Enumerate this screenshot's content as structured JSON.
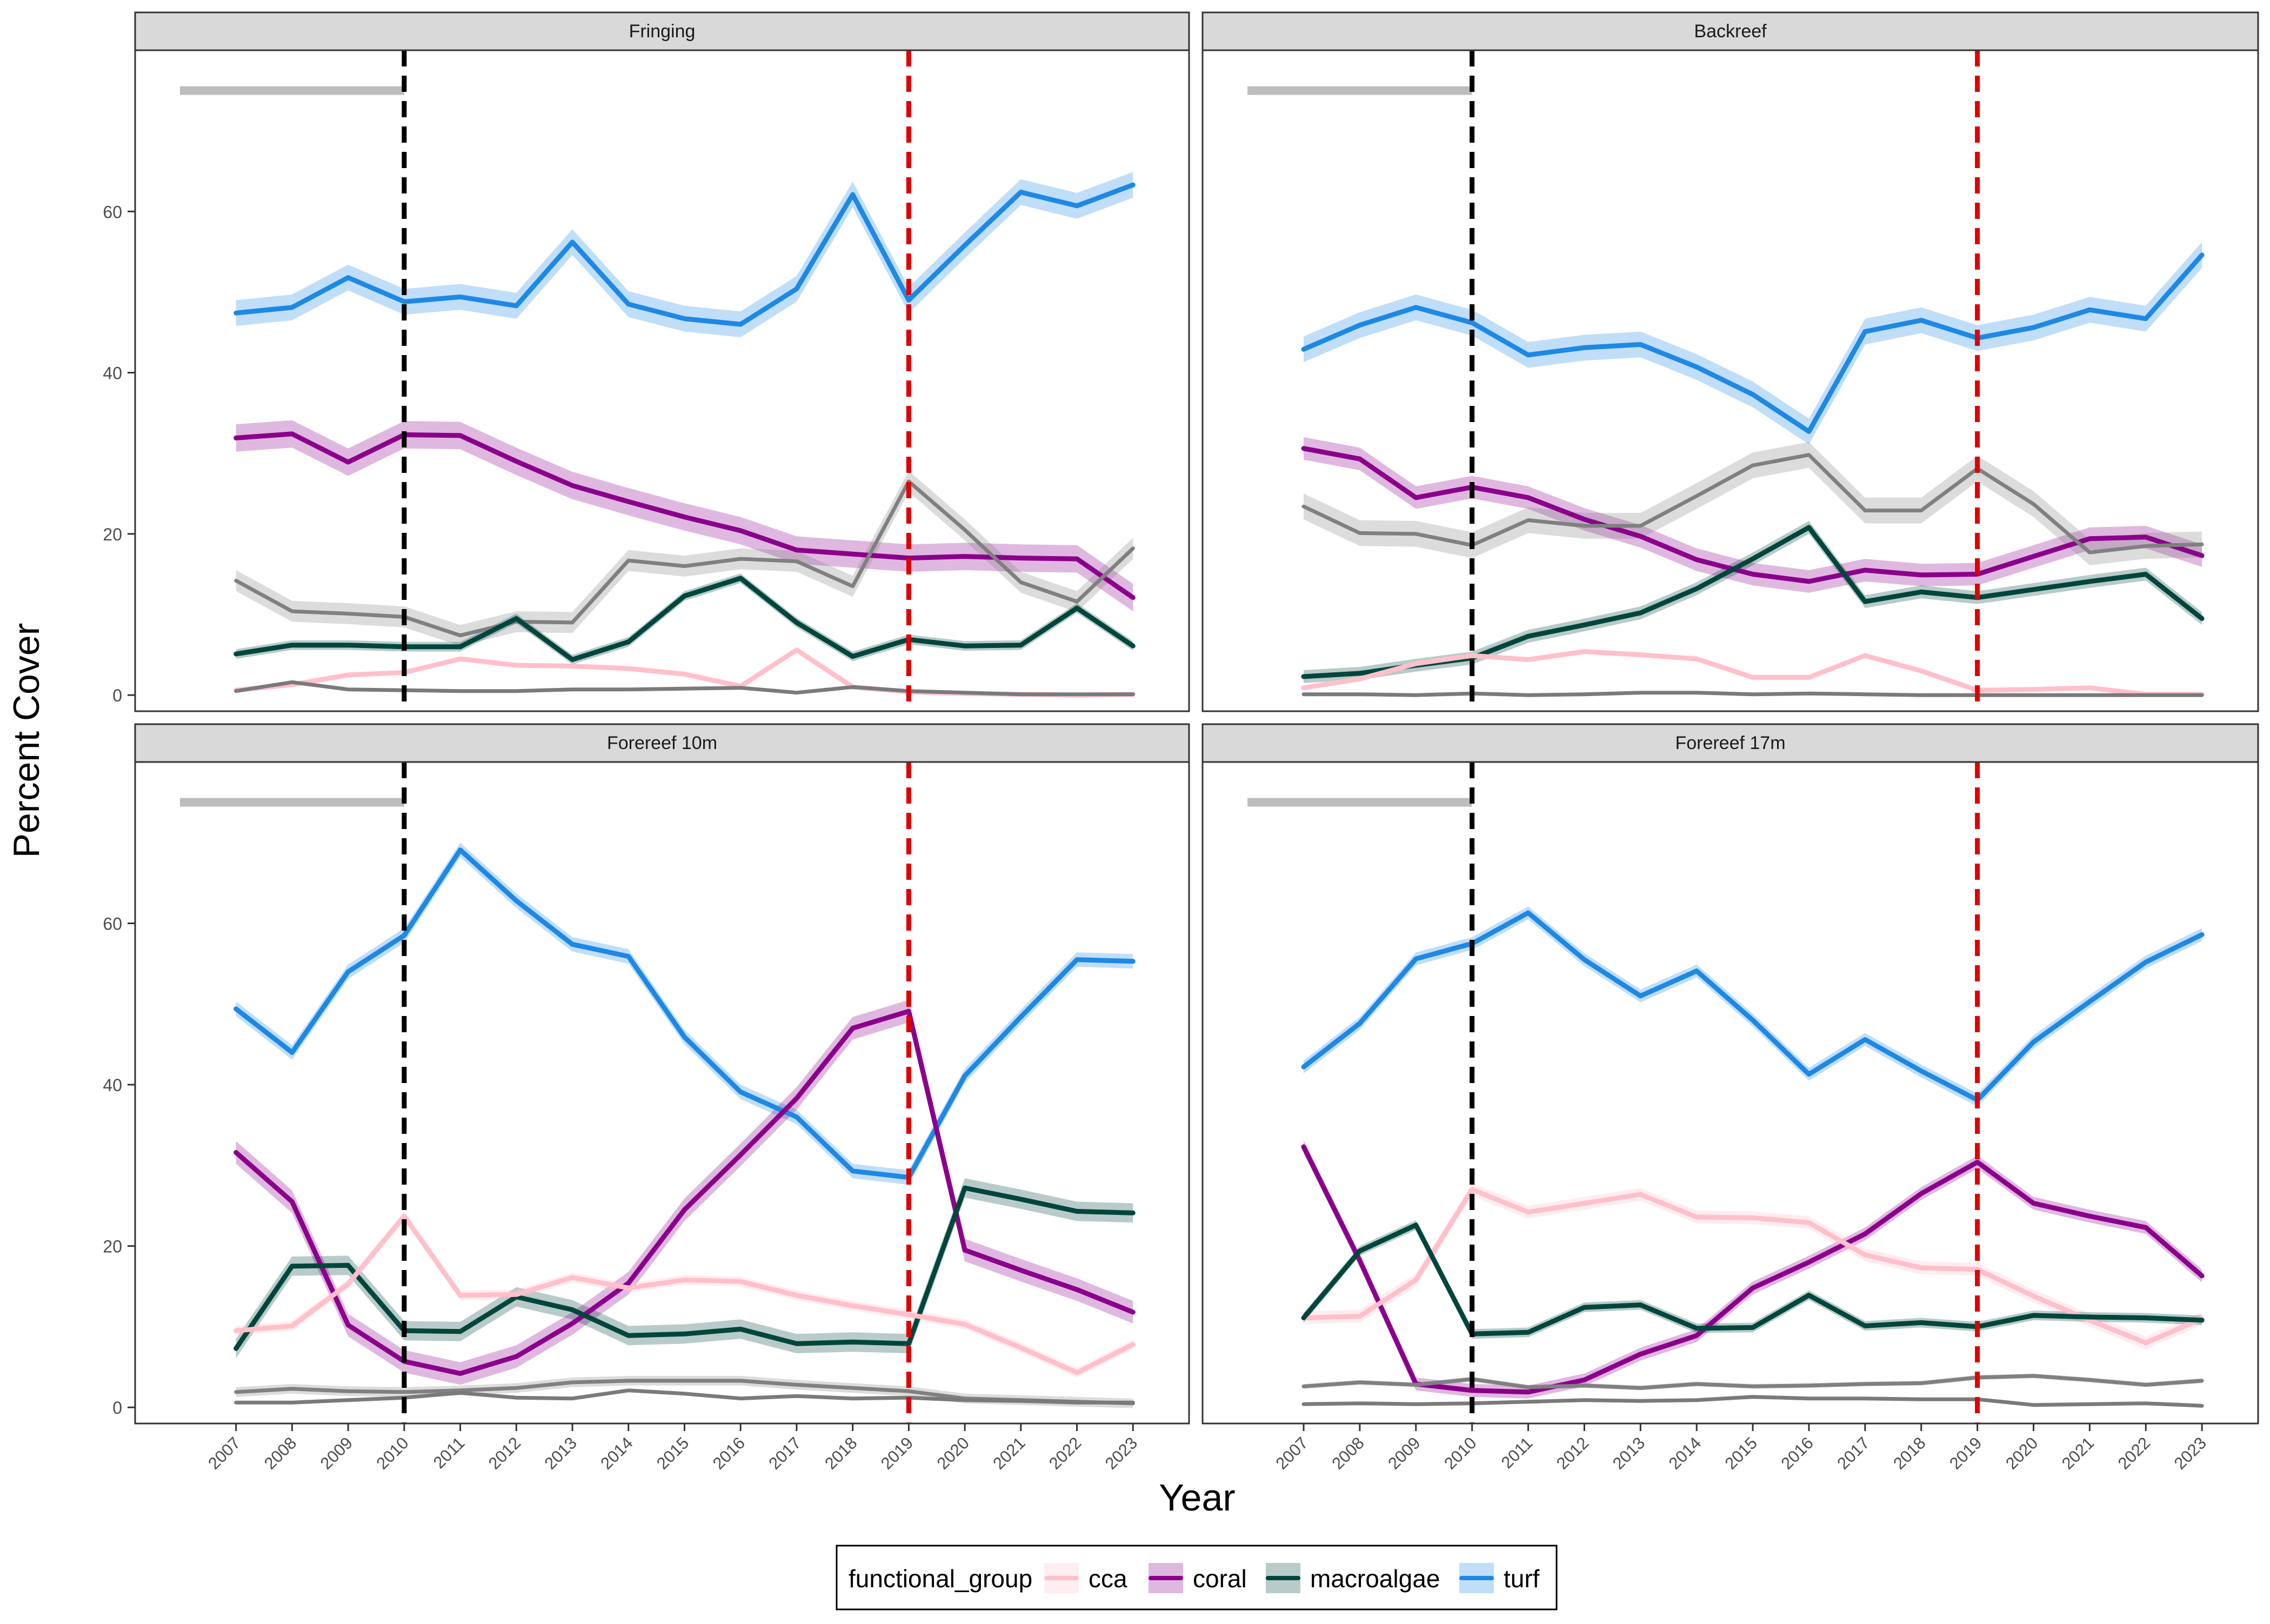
{
  "figure": {
    "ylabel": "Percent Cover",
    "xlabel": "Year"
  },
  "legend": {
    "title": "functional_group",
    "placement": "bottom",
    "entries": [
      {
        "label": "cca",
        "color": "#ffc0cb"
      },
      {
        "label": "coral",
        "color": "#8b008b"
      },
      {
        "label": "macroalgae",
        "color": "#00463c"
      },
      {
        "label": "turf",
        "color": "#1e88e5"
      }
    ]
  },
  "colors": {
    "cca": "#ffc0cb",
    "coral": "#8b008b",
    "macroalgae": "#00463c",
    "turf": "#1e88e5",
    "grey_upper": "#808080",
    "grey_lower": "#7a7a7a",
    "period_bar": "#bdbdbd",
    "vline_2010": "#000000",
    "vline_2019": "#e00000",
    "strip_fill": "#d9d9d9"
  },
  "chart_data": {
    "type": "line",
    "facets": [
      "Fringing",
      "Backreef",
      "Forereef 10m",
      "Forereef 17m"
    ],
    "x": [
      2007,
      2008,
      2009,
      2010,
      2011,
      2012,
      2013,
      2014,
      2015,
      2016,
      2017,
      2018,
      2019,
      2020,
      2021,
      2022,
      2023
    ],
    "x_tick_labels": [
      "2007",
      "2008",
      "2009",
      "2010",
      "2011",
      "2012",
      "2013",
      "2014",
      "2015",
      "2016",
      "2017",
      "2018",
      "2019",
      "2020",
      "2021",
      "2022",
      "2023"
    ],
    "y_ticks": [
      0,
      20,
      40,
      60
    ],
    "ylim": [
      -2,
      80
    ],
    "xlim": [
      2005.2,
      2024.0
    ],
    "grid": false,
    "vertical_lines": [
      {
        "x": 2010,
        "color": "black",
        "style": "dashed"
      },
      {
        "x": 2019,
        "color": "red",
        "style": "dashed"
      }
    ],
    "period_bar": {
      "x_start": 2006.0,
      "x_end": 2010,
      "y": 75
    },
    "panels": [
      {
        "facet": "Fringing",
        "series": [
          {
            "name": "turf",
            "values": [
              47.4,
              48.1,
              51.8,
              48.8,
              49.4,
              48.3,
              56.2,
              48.5,
              46.7,
              46.0,
              50.4,
              62.1,
              49.0,
              55.8,
              62.4,
              60.7,
              63.3
            ],
            "band": 1.6
          },
          {
            "name": "coral",
            "values": [
              31.9,
              32.4,
              28.9,
              32.3,
              32.2,
              29.0,
              26.0,
              24.0,
              22.1,
              20.4,
              18.0,
              17.5,
              17.0,
              17.2,
              17.0,
              16.9,
              12.1
            ],
            "band": 1.7
          },
          {
            "name": "grey_upper",
            "values": [
              14.2,
              10.4,
              10.1,
              9.7,
              7.4,
              9.1,
              9.0,
              16.7,
              16.0,
              16.9,
              16.6,
              13.5,
              26.5,
              20.5,
              14.0,
              11.6,
              18.2
            ],
            "band": 1.3
          },
          {
            "name": "macroalgae",
            "values": [
              5.1,
              6.2,
              6.2,
              6.0,
              6.0,
              9.5,
              4.4,
              6.6,
              12.3,
              14.5,
              9.0,
              4.8,
              6.9,
              6.1,
              6.2,
              10.8,
              6.1
            ],
            "band": 0.6
          },
          {
            "name": "cca",
            "values": [
              0.6,
              1.3,
              2.5,
              2.8,
              4.5,
              3.7,
              3.6,
              3.3,
              2.6,
              1.1,
              5.6,
              1.0,
              0.4,
              0.2,
              0.1,
              0.0,
              0.1
            ],
            "band": 0.3
          },
          {
            "name": "grey_lower",
            "values": [
              0.5,
              1.6,
              0.7,
              0.6,
              0.5,
              0.5,
              0.7,
              0.7,
              0.8,
              0.9,
              0.3,
              1.0,
              0.5,
              0.3,
              0.1,
              0.1,
              0.1
            ],
            "band": 0.2
          }
        ]
      },
      {
        "facet": "Backreef",
        "series": [
          {
            "name": "turf",
            "values": [
              42.9,
              45.9,
              48.1,
              46.2,
              42.2,
              43.1,
              43.5,
              40.7,
              37.3,
              32.7,
              45.1,
              46.5,
              44.3,
              45.6,
              47.8,
              46.7,
              54.6
            ],
            "band": 1.6
          },
          {
            "name": "coral",
            "values": [
              30.6,
              29.3,
              24.5,
              25.8,
              24.5,
              21.8,
              19.7,
              16.8,
              15.0,
              14.1,
              15.5,
              14.9,
              15.0,
              17.2,
              19.4,
              19.6,
              17.3
            ],
            "band": 1.4
          },
          {
            "name": "grey_upper",
            "values": [
              23.4,
              20.1,
              20.0,
              18.6,
              21.7,
              21.0,
              21.0,
              24.7,
              28.5,
              29.8,
              22.9,
              22.9,
              28.1,
              23.7,
              17.7,
              18.5,
              18.7
            ],
            "band": 1.6
          },
          {
            "name": "macroalgae",
            "values": [
              2.3,
              2.7,
              3.7,
              4.6,
              7.3,
              8.7,
              10.2,
              13.2,
              16.9,
              20.8,
              11.6,
              12.8,
              12.1,
              13.1,
              14.1,
              15.0,
              9.5
            ],
            "band": 0.8
          },
          {
            "name": "cca",
            "values": [
              0.9,
              2.0,
              3.9,
              4.9,
              4.4,
              5.4,
              5.0,
              4.5,
              2.2,
              2.2,
              4.9,
              3.0,
              0.6,
              0.7,
              0.9,
              0.1,
              0.1
            ],
            "band": 0.3
          },
          {
            "name": "grey_lower",
            "values": [
              0.1,
              0.1,
              0.0,
              0.2,
              0.0,
              0.1,
              0.3,
              0.3,
              0.1,
              0.2,
              0.1,
              0.0,
              0.0,
              0.0,
              0.0,
              0.0,
              0.0
            ],
            "band": 0.2
          }
        ]
      },
      {
        "facet": "Forereef 10m",
        "series": [
          {
            "name": "turf",
            "values": [
              49.4,
              44.0,
              54.0,
              58.5,
              69.1,
              62.8,
              57.4,
              55.9,
              45.9,
              39.1,
              36.0,
              29.3,
              28.5,
              41.1,
              48.4,
              55.5,
              55.3
            ],
            "band": 0.9
          },
          {
            "name": "coral",
            "values": [
              31.6,
              25.5,
              10.2,
              5.7,
              4.2,
              6.3,
              10.4,
              15.4,
              24.5,
              31.3,
              38.3,
              47.0,
              49.1,
              19.5,
              17.0,
              14.6,
              11.8
            ],
            "band": 1.4
          },
          {
            "name": "macroalgae",
            "values": [
              7.3,
              17.5,
              17.6,
              9.5,
              9.4,
              13.7,
              12.1,
              8.9,
              9.1,
              9.7,
              7.9,
              8.1,
              7.9,
              27.2,
              25.8,
              24.3,
              24.1
            ],
            "band": 1.2
          },
          {
            "name": "cca",
            "values": [
              9.5,
              10.1,
              15.3,
              23.7,
              13.9,
              14.0,
              16.1,
              14.8,
              15.8,
              15.6,
              13.9,
              12.6,
              11.5,
              10.3,
              7.4,
              4.3,
              7.8
            ],
            "band": 0.6
          },
          {
            "name": "grey_upper",
            "values": [
              1.9,
              2.3,
              2.0,
              1.9,
              2.1,
              2.4,
              3.1,
              3.3,
              3.3,
              3.3,
              2.8,
              2.4,
              2.0,
              1.1,
              0.9,
              0.7,
              0.5
            ],
            "band": 0.6
          },
          {
            "name": "grey_lower",
            "values": [
              0.6,
              0.6,
              0.9,
              1.2,
              1.8,
              1.2,
              1.1,
              2.1,
              1.7,
              1.1,
              1.4,
              1.1,
              1.2,
              0.9,
              0.8,
              0.6,
              0.6
            ],
            "band": 0.2
          }
        ]
      },
      {
        "facet": "Forereef 17m",
        "series": [
          {
            "name": "turf",
            "values": [
              42.2,
              47.6,
              55.6,
              57.5,
              61.3,
              55.5,
              51.0,
              54.1,
              48.0,
              41.3,
              45.6,
              41.7,
              38.1,
              45.3,
              50.3,
              55.2,
              58.6
            ],
            "band": 0.8
          },
          {
            "name": "coral",
            "values": [
              32.3,
              18.2,
              2.9,
              2.1,
              1.9,
              3.4,
              6.6,
              8.9,
              14.8,
              18.0,
              21.5,
              26.5,
              30.4,
              25.3,
              23.7,
              22.3,
              16.3
            ],
            "band": 0.8
          },
          {
            "name": "cca",
            "values": [
              11.1,
              11.3,
              15.8,
              27.0,
              24.2,
              25.3,
              26.4,
              23.6,
              23.5,
              22.9,
              18.9,
              17.3,
              17.1,
              13.8,
              10.8,
              8.0,
              11.0
            ],
            "band": 0.8
          },
          {
            "name": "macroalgae",
            "values": [
              11.1,
              19.4,
              22.6,
              9.1,
              9.3,
              12.4,
              12.7,
              9.8,
              9.9,
              13.9,
              10.1,
              10.5,
              10.0,
              11.4,
              11.2,
              11.1,
              10.8
            ],
            "band": 0.6
          },
          {
            "name": "grey_upper",
            "values": [
              2.6,
              3.1,
              2.8,
              3.5,
              2.5,
              2.7,
              2.4,
              2.9,
              2.6,
              2.7,
              2.9,
              3.0,
              3.7,
              3.9,
              3.4,
              2.8,
              3.3
            ],
            "band": 0.3
          },
          {
            "name": "grey_lower",
            "values": [
              0.4,
              0.5,
              0.4,
              0.5,
              0.7,
              0.9,
              0.8,
              0.9,
              1.3,
              1.1,
              1.1,
              1.0,
              1.0,
              0.3,
              0.4,
              0.5,
              0.2
            ],
            "band": 0.2
          }
        ]
      }
    ]
  }
}
